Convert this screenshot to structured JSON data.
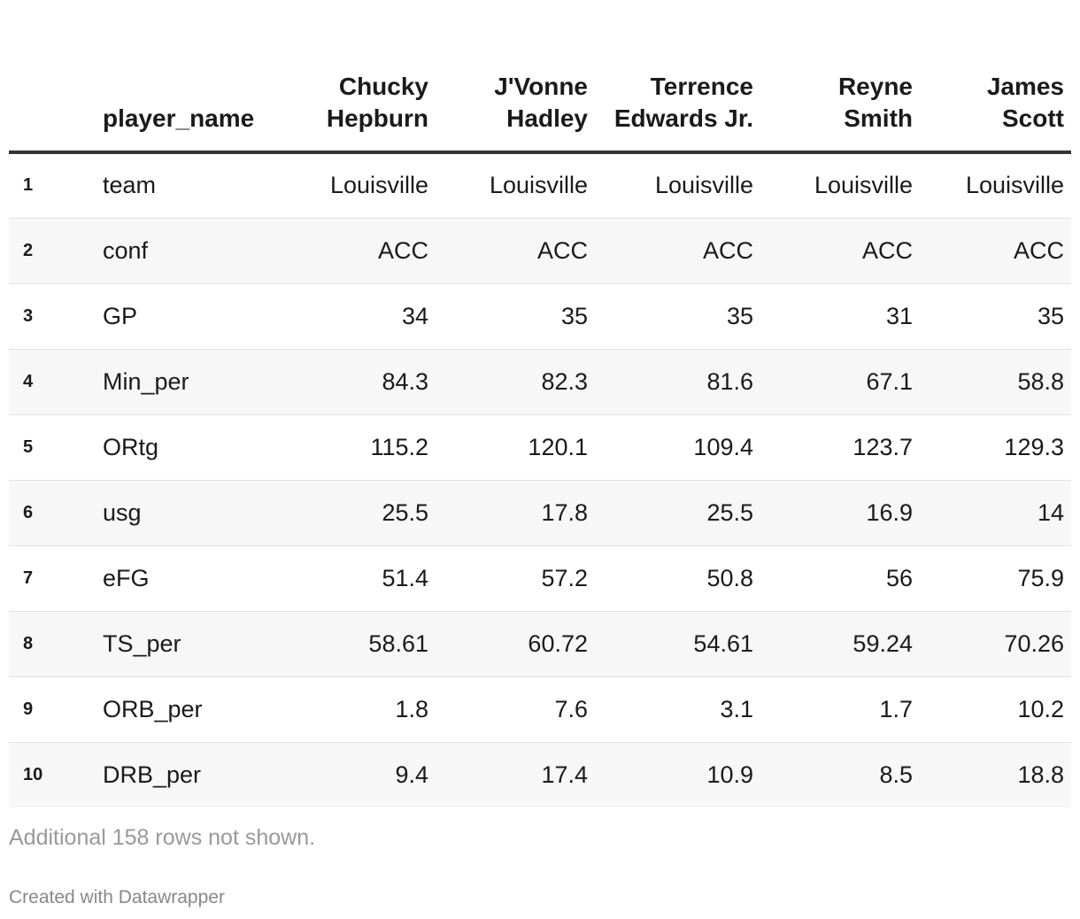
{
  "chart_data": {
    "type": "table",
    "header": {
      "index_label": "",
      "name_label": "player_name"
    },
    "columns": [
      "Chucky Hepburn",
      "J'Vonne Hadley",
      "Terrence Edwards Jr.",
      "Reyne Smith",
      "James Scott"
    ],
    "rows": [
      {
        "index": "1",
        "label": "team",
        "values": [
          "Louisville",
          "Louisville",
          "Louisville",
          "Louisville",
          "Louisville"
        ]
      },
      {
        "index": "2",
        "label": "conf",
        "values": [
          "ACC",
          "ACC",
          "ACC",
          "ACC",
          "ACC"
        ]
      },
      {
        "index": "3",
        "label": "GP",
        "values": [
          "34",
          "35",
          "35",
          "31",
          "35"
        ]
      },
      {
        "index": "4",
        "label": "Min_per",
        "values": [
          "84.3",
          "82.3",
          "81.6",
          "67.1",
          "58.8"
        ]
      },
      {
        "index": "5",
        "label": "ORtg",
        "values": [
          "115.2",
          "120.1",
          "109.4",
          "123.7",
          "129.3"
        ]
      },
      {
        "index": "6",
        "label": "usg",
        "values": [
          "25.5",
          "17.8",
          "25.5",
          "16.9",
          "14"
        ]
      },
      {
        "index": "7",
        "label": "eFG",
        "values": [
          "51.4",
          "57.2",
          "50.8",
          "56",
          "75.9"
        ]
      },
      {
        "index": "8",
        "label": "TS_per",
        "values": [
          "58.61",
          "60.72",
          "54.61",
          "59.24",
          "70.26"
        ]
      },
      {
        "index": "9",
        "label": "ORB_per",
        "values": [
          "1.8",
          "7.6",
          "3.1",
          "1.7",
          "10.2"
        ]
      },
      {
        "index": "10",
        "label": "DRB_per",
        "values": [
          "9.4",
          "17.4",
          "10.9",
          "8.5",
          "18.8"
        ]
      }
    ]
  },
  "footer": {
    "note": "Additional 158 rows not shown.",
    "credit": "Created with Datawrapper"
  }
}
